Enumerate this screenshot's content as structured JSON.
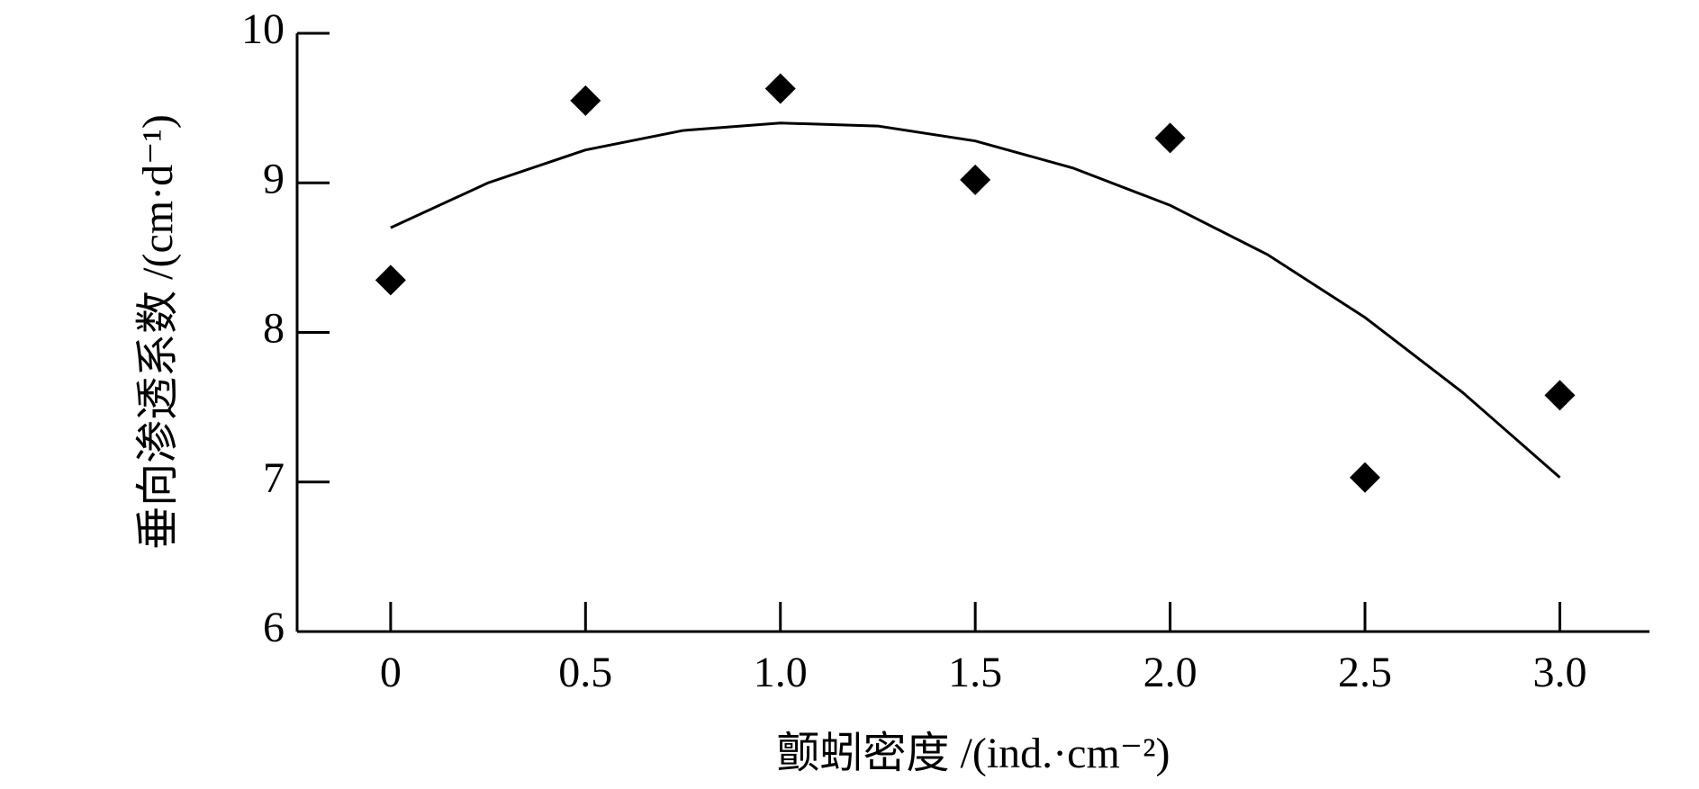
{
  "chart_data": {
    "type": "scatter",
    "x_label": "颤蚓密度 /(ind.·cm⁻²)",
    "y_label": "垂向渗透系数 /(cm·d⁻¹)",
    "x": [
      0,
      0.5,
      1.0,
      1.5,
      2.0,
      2.5,
      3.0
    ],
    "values": [
      8.35,
      9.55,
      9.63,
      9.02,
      9.3,
      7.03,
      7.58
    ],
    "color": "#000000",
    "fit": {
      "x": [
        0,
        0.25,
        0.5,
        0.75,
        1.0,
        1.25,
        1.5,
        1.75,
        2.0,
        2.25,
        2.5,
        2.75,
        3.0
      ],
      "values": [
        8.7,
        9.0,
        9.22,
        9.35,
        9.4,
        9.38,
        9.28,
        9.1,
        8.85,
        8.52,
        8.1,
        7.6,
        7.03
      ]
    },
    "xlim": [
      -0.24,
      3.23
    ],
    "ylim": [
      6,
      10
    ],
    "xticks": [
      0,
      0.5,
      {
        "value": 1,
        "label": "1.0"
      },
      1.5,
      {
        "value": 2,
        "label": "2.0"
      },
      2.5,
      {
        "value": 3,
        "label": "3.0"
      }
    ],
    "yticks": [
      6,
      7,
      8,
      9,
      10
    ],
    "grid": false
  }
}
